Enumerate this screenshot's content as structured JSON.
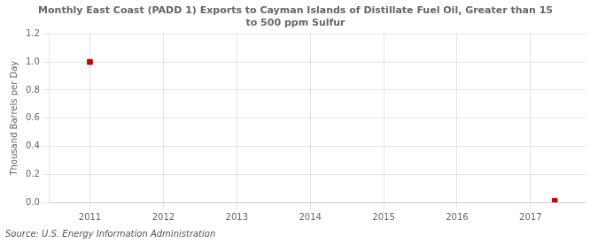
{
  "chart_data": {
    "type": "scatter",
    "title": "Monthly East Coast (PADD 1) Exports to Cayman Islands of Distillate Fuel Oil, Greater than 15\nto 500 ppm Sulfur",
    "ylabel": "Thousand Barrels per Day",
    "source": "Source: U.S. Energy Information Administration",
    "x": [
      2011.0,
      2017.33
    ],
    "values": [
      1.0,
      0.01
    ],
    "color": "#cc0000",
    "marker": "square",
    "xlim": [
      2010.45,
      2017.75
    ],
    "ylim": [
      0.0,
      1.2
    ],
    "xticks": [
      2011,
      2012,
      2013,
      2014,
      2015,
      2016,
      2017
    ],
    "yticks": [
      {
        "value": 0.0,
        "label": "0.0"
      },
      0.2,
      0.4,
      0.6,
      0.8,
      {
        "value": 1.0,
        "label": "1.0"
      },
      1.2
    ],
    "grid": true
  }
}
